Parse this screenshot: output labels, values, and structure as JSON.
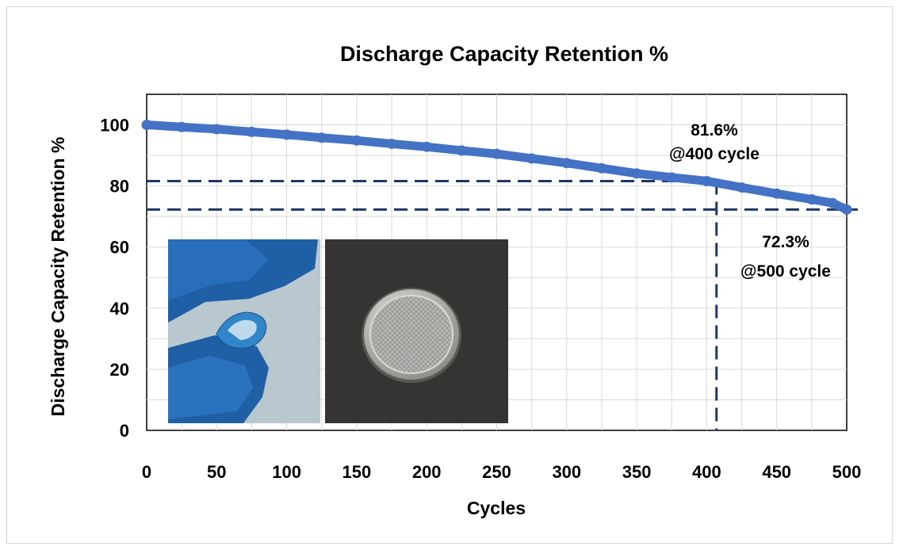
{
  "chart_data": {
    "type": "line",
    "title": "Discharge Capacity Retention %",
    "xlabel": "Cycles",
    "ylabel": "Discharge Capacity Retention %",
    "xlim": [
      0,
      500
    ],
    "ylim": [
      0,
      110
    ],
    "x_ticks": [
      0,
      50,
      100,
      150,
      200,
      250,
      300,
      350,
      400,
      450,
      500
    ],
    "y_ticks": [
      0,
      20,
      40,
      60,
      80,
      100
    ],
    "grid": true,
    "legend": "none",
    "series": [
      {
        "color": "#4472c4",
        "x": [
          0,
          25,
          50,
          75,
          100,
          125,
          150,
          175,
          200,
          225,
          250,
          275,
          300,
          325,
          350,
          375,
          400,
          425,
          450,
          475,
          490,
          500
        ],
        "y": [
          100,
          99.3,
          98.6,
          97.7,
          96.8,
          95.8,
          94.9,
          93.8,
          92.8,
          91.6,
          90.5,
          89.0,
          87.5,
          85.8,
          84.1,
          82.8,
          81.6,
          79.5,
          77.5,
          75.6,
          74.4,
          72.3
        ]
      }
    ],
    "reference_lines": [
      {
        "axis": "y",
        "value": 81.6,
        "color": "#1f3864",
        "style": "dashed"
      },
      {
        "axis": "y",
        "value": 72.3,
        "color": "#1f3864",
        "style": "dashed"
      },
      {
        "axis": "x",
        "value": 407,
        "color": "#1f3864",
        "style": "dashed"
      }
    ],
    "annotations": [
      {
        "lines": [
          "81.6%",
          "@400 cycle"
        ]
      },
      {
        "lines": [
          "72.3%",
          "@500 cycle"
        ]
      }
    ],
    "inset_photos": [
      "blue-flexible-film-photo",
      "coin-cell-photo"
    ]
  }
}
